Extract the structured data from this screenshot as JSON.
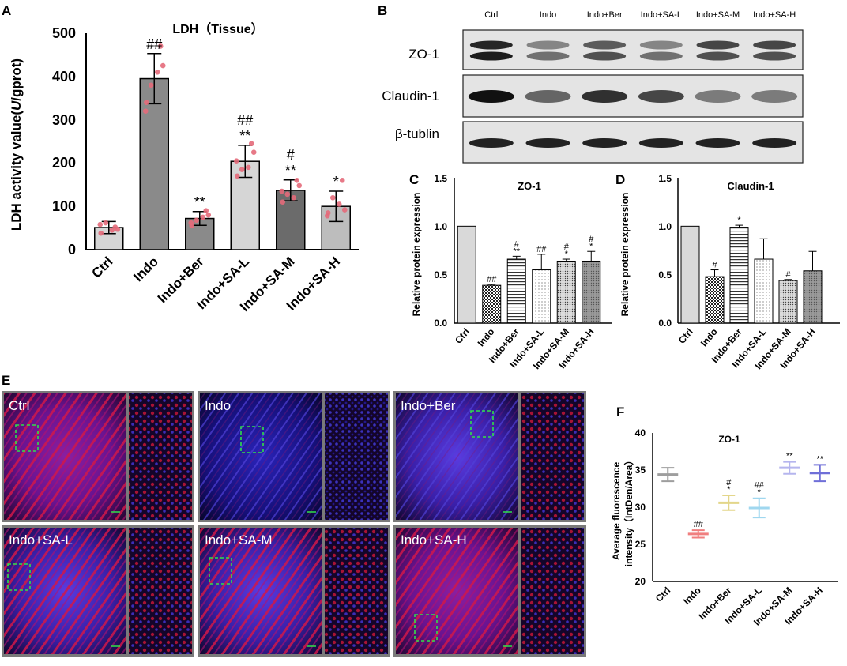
{
  "panels": {
    "A": {
      "letter": "A",
      "title": "LDH（Tissue）",
      "ylabel_pre": "LDH activity value(",
      "ylabel_unit": "U",
      "ylabel_post": "/gprot)",
      "yticks": [
        "0",
        "100",
        "200",
        "300",
        "400",
        "500"
      ],
      "categories": [
        "Ctrl",
        "Indo",
        "Indo+Ber",
        "Indo+SA-L",
        "Indo+SA-M",
        "Indo+SA-H"
      ],
      "annotations": [
        {
          "idx": 1,
          "lines": [
            "##"
          ]
        },
        {
          "idx": 2,
          "lines": [
            "**"
          ]
        },
        {
          "idx": 3,
          "lines": [
            "##",
            "**"
          ]
        },
        {
          "idx": 4,
          "lines": [
            "#",
            "**"
          ]
        },
        {
          "idx": 5,
          "lines": [
            "*"
          ]
        }
      ]
    },
    "B": {
      "letter": "B",
      "lanes": [
        "Ctrl",
        "Indo",
        "Indo+Ber",
        "Indo+SA-L",
        "Indo+SA-M",
        "Indo+SA-H"
      ],
      "rows": [
        "ZO-1",
        "Claudin-1",
        "β-tublin"
      ]
    },
    "C": {
      "letter": "C",
      "title": "ZO-1",
      "ylabel": "Relative protein expression",
      "yticks": [
        "0.0",
        "0.5",
        "1.0",
        "1.5"
      ],
      "categories": [
        "Ctrl",
        "Indo",
        "Indo+Ber",
        "Indo+SA-L",
        "Indo+SA-M",
        "Indo+SA-H"
      ],
      "annotations": [
        {
          "idx": 1,
          "lines": [
            "##"
          ]
        },
        {
          "idx": 2,
          "lines": [
            "#",
            "**"
          ]
        },
        {
          "idx": 3,
          "lines": [
            "##"
          ]
        },
        {
          "idx": 4,
          "lines": [
            "#",
            "*"
          ]
        },
        {
          "idx": 5,
          "lines": [
            "#",
            "*"
          ]
        }
      ]
    },
    "D": {
      "letter": "D",
      "title": "Claudin-1",
      "ylabel": "Relative protein expression",
      "yticks": [
        "0.0",
        "0.5",
        "1.0",
        "1.5"
      ],
      "categories": [
        "Ctrl",
        "Indo",
        "Indo+Ber",
        "Indo+SA-L",
        "Indo+SA-M",
        "Indo+SA-H"
      ],
      "annotations": [
        {
          "idx": 1,
          "lines": [
            "#"
          ]
        },
        {
          "idx": 2,
          "lines": [
            "*"
          ]
        },
        {
          "idx": 4,
          "lines": [
            "#"
          ]
        }
      ]
    },
    "E": {
      "letter": "E",
      "labels": [
        "Ctrl",
        "Indo",
        "Indo+Ber",
        "Indo+SA-L",
        "Indo+SA-M",
        "Indo+SA-H"
      ]
    },
    "F": {
      "letter": "F",
      "title": "ZO-1",
      "ylabel1": "Average fluorescence",
      "ylabel2": "intensity（IntDen/Area）",
      "yticks": [
        "20",
        "25",
        "30",
        "35",
        "40"
      ],
      "categories": [
        "Ctrl",
        "Indo",
        "Indo+Ber",
        "Indo+SA-L",
        "Indo+SA-M",
        "Indo+SA-H"
      ],
      "colors": [
        "#9e9e9e",
        "#f07f7f",
        "#e3d68a",
        "#9fd7ef",
        "#b5b5ee",
        "#6f6fd8"
      ],
      "annotations": [
        {
          "idx": 1,
          "lines": [
            "##"
          ]
        },
        {
          "idx": 2,
          "lines": [
            "#",
            "*"
          ]
        },
        {
          "idx": 3,
          "lines": [
            "##",
            "*"
          ]
        },
        {
          "idx": 4,
          "lines": [
            "**"
          ]
        },
        {
          "idx": 5,
          "lines": [
            "**"
          ]
        }
      ]
    }
  },
  "chart_data": [
    {
      "type": "bar",
      "title": "LDH（Tissue）",
      "ylabel": "LDH activity value(U/gprot)",
      "categories": [
        "Ctrl",
        "Indo",
        "Indo+Ber",
        "Indo+SA-L",
        "Indo+SA-M",
        "Indo+SA-H"
      ],
      "values": [
        51,
        395,
        72,
        204,
        137,
        100
      ],
      "errors": [
        14,
        58,
        16,
        37,
        24,
        35
      ],
      "points": [
        [
          38,
          52,
          62,
          47,
          58,
          45
        ],
        [
          340,
          470,
          380,
          425,
          320,
          410
        ],
        [
          55,
          90,
          68,
          80,
          62,
          75
        ],
        [
          170,
          245,
          185,
          225,
          205,
          190
        ],
        [
          110,
          160,
          128,
          148,
          135,
          120
        ],
        [
          85,
          160,
          120,
          92,
          78,
          105
        ]
      ],
      "bar_colors": [
        "#d6d6d6",
        "#8a8a8a",
        "#8a8a8a",
        "#d6d6d6",
        "#6b6b6b",
        "#bdbdbd"
      ],
      "ylim": [
        0,
        500
      ]
    },
    {
      "type": "bar",
      "title": "ZO-1",
      "ylabel": "Relative protein expression",
      "categories": [
        "Ctrl",
        "Indo",
        "Indo+Ber",
        "Indo+SA-L",
        "Indo+SA-M",
        "Indo+SA-H"
      ],
      "values": [
        1.0,
        0.39,
        0.66,
        0.55,
        0.64,
        0.64
      ],
      "errors": [
        0,
        0.01,
        0.03,
        0.16,
        0.02,
        0.1
      ],
      "patterns": [
        "solid",
        "checker",
        "hlines",
        "dots",
        "dense",
        "darkdots"
      ],
      "ylim": [
        0,
        1.5
      ]
    },
    {
      "type": "bar",
      "title": "Claudin-1",
      "ylabel": "Relative protein expression",
      "categories": [
        "Ctrl",
        "Indo",
        "Indo+Ber",
        "Indo+SA-L",
        "Indo+SA-M",
        "Indo+SA-H"
      ],
      "values": [
        1.0,
        0.48,
        0.99,
        0.66,
        0.44,
        0.54
      ],
      "errors": [
        0,
        0.07,
        0.02,
        0.21,
        0.01,
        0.2
      ],
      "patterns": [
        "solid",
        "checker",
        "hlines",
        "dots",
        "dense",
        "darkdots"
      ],
      "ylim": [
        0,
        1.5
      ]
    },
    {
      "type": "scatter",
      "title": "ZO-1",
      "ylabel": "Average fluorescence intensity（IntDen/Area）",
      "categories": [
        "Ctrl",
        "Indo",
        "Indo+Ber",
        "Indo+SA-L",
        "Indo+SA-M",
        "Indo+SA-H"
      ],
      "means": [
        34.4,
        26.4,
        30.6,
        29.9,
        35.3,
        34.6
      ],
      "errors": [
        0.9,
        0.5,
        1.0,
        1.3,
        0.8,
        1.1
      ],
      "ylim": [
        20,
        40
      ]
    }
  ]
}
